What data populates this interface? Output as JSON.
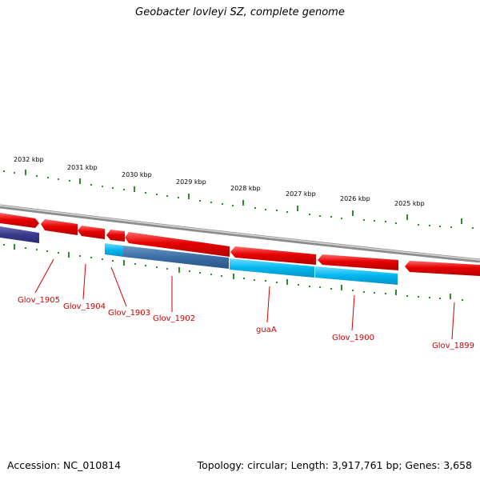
{
  "title": "Geobacter lovleyi SZ, complete genome",
  "footer": {
    "accession": "Accession: NC_010814",
    "stats": "Topology: circular; Length: 3,917,761 bp; Genes: 3,658"
  },
  "colors": {
    "forward_gene": "#e60000",
    "reverse_gene_light": "#00b7f0",
    "reverse_gene_dark": "#3b6ea5",
    "reverse_gene_navy": "#3a3a8c",
    "backbone": "#8c8c8c",
    "tick": "#2e8b2e",
    "label": "#cc0000"
  },
  "kbp_labels": [
    "2032 kbp",
    "2031 kbp",
    "2030 kbp",
    "2029 kbp",
    "2028 kbp",
    "2027 kbp",
    "2026 kbp",
    "2025 kbp"
  ],
  "gene_labels": [
    "Glov_1905",
    "Glov_1904",
    "Glov_1903",
    "Glov_1902",
    "guaA",
    "Glov_1900",
    "Glov_1899"
  ]
}
